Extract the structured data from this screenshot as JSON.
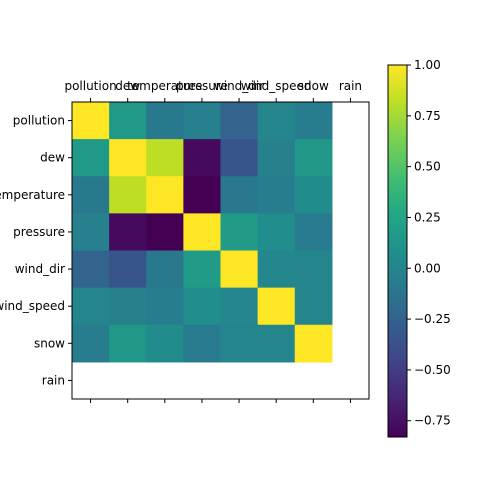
{
  "chart_data": {
    "type": "heatmap",
    "labels": [
      "pollution",
      "dew",
      "temperature",
      "pressure",
      "wind_dir",
      "wind_speed",
      "snow",
      "rain"
    ],
    "matrix": [
      [
        1.0,
        0.16,
        -0.09,
        -0.04,
        -0.24,
        0.0,
        -0.06,
        null
      ],
      [
        0.16,
        1.0,
        0.82,
        -0.78,
        -0.34,
        -0.03,
        0.14,
        null
      ],
      [
        -0.09,
        0.82,
        1.0,
        -0.83,
        -0.1,
        -0.06,
        0.05,
        null
      ],
      [
        -0.04,
        -0.78,
        -0.83,
        1.0,
        0.17,
        0.06,
        -0.08,
        null
      ],
      [
        -0.24,
        -0.34,
        -0.1,
        0.17,
        1.0,
        0.02,
        0.0,
        null
      ],
      [
        0.0,
        -0.03,
        -0.06,
        0.06,
        0.02,
        1.0,
        0.0,
        null
      ],
      [
        -0.06,
        0.14,
        0.05,
        -0.08,
        0.0,
        0.0,
        1.0,
        null
      ],
      [
        null,
        null,
        null,
        null,
        null,
        null,
        null,
        null
      ]
    ],
    "colormap": "viridis",
    "vmin": -0.83,
    "vmax": 1.0,
    "colorbar_ticks": [
      1.0,
      0.75,
      0.5,
      0.25,
      0.0,
      -0.25,
      -0.5,
      -0.75
    ],
    "colorbar_tick_labels": [
      "1.00",
      "0.75",
      "0.50",
      "0.25",
      "0.00",
      "−0.25",
      "−0.50",
      "−0.75"
    ],
    "x_labels_position": "top",
    "grid": false
  }
}
